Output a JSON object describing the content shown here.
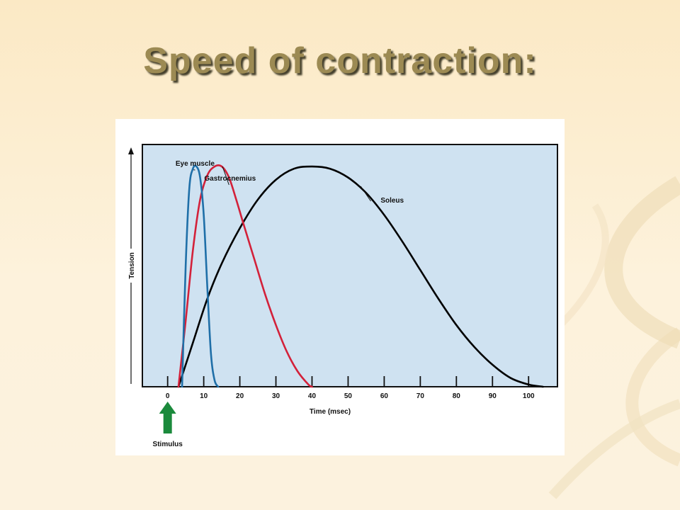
{
  "slide": {
    "title": "Speed of contraction:"
  },
  "colors": {
    "eye_muscle": "#1f6fa8",
    "gastrocnemius": "#d3213a",
    "soleus": "#000000",
    "plot_bg": "#cfe2f1",
    "stimulus_arrow": "#1b8a3c",
    "title": "#9c8a53"
  },
  "chart_data": {
    "type": "line",
    "xlabel": "Time (msec)",
    "ylabel": "Tension",
    "xlim": [
      -7,
      108
    ],
    "ylim": [
      0,
      1.1
    ],
    "x_ticks": [
      0,
      10,
      20,
      30,
      40,
      50,
      60,
      70,
      80,
      90,
      100
    ],
    "y_ticks_labeled": false,
    "annotation": "Stimulus",
    "annotation_x": 0,
    "series": [
      {
        "name": "Eye muscle",
        "color_key": "eye_muscle",
        "x": [
          4,
          5,
          6,
          7,
          8,
          9,
          10,
          11,
          12,
          13,
          14
        ],
        "y": [
          0.0,
          0.55,
          0.9,
          0.99,
          1.0,
          0.95,
          0.78,
          0.45,
          0.15,
          0.03,
          0.0
        ]
      },
      {
        "name": "Gastrocnemius",
        "color_key": "gastrocnemius",
        "x": [
          3,
          5,
          7,
          9,
          11,
          13,
          15,
          17,
          19,
          21,
          24,
          27,
          30,
          33,
          36,
          39,
          40
        ],
        "y": [
          0.0,
          0.3,
          0.62,
          0.85,
          0.96,
          1.0,
          1.0,
          0.95,
          0.85,
          0.74,
          0.58,
          0.42,
          0.28,
          0.16,
          0.07,
          0.01,
          0.0
        ]
      },
      {
        "name": "Soleus",
        "color_key": "soleus",
        "x": [
          3,
          7,
          11,
          15,
          20,
          25,
          30,
          35,
          40,
          45,
          50,
          55,
          60,
          65,
          70,
          75,
          80,
          85,
          90,
          95,
          100,
          104
        ],
        "y": [
          0.0,
          0.2,
          0.4,
          0.56,
          0.72,
          0.85,
          0.94,
          0.99,
          1.0,
          0.99,
          0.95,
          0.88,
          0.78,
          0.66,
          0.53,
          0.4,
          0.28,
          0.18,
          0.1,
          0.04,
          0.01,
          0.0
        ]
      }
    ]
  }
}
